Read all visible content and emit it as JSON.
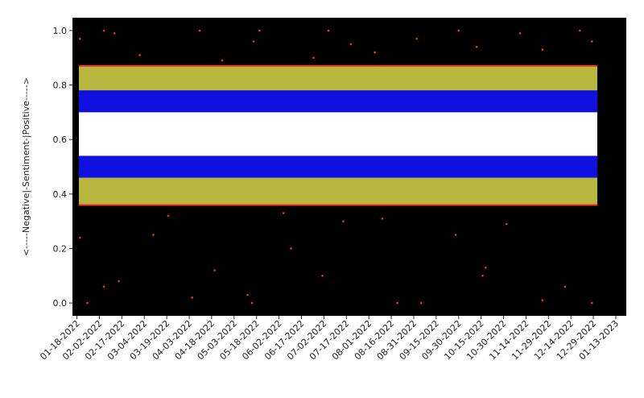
{
  "chart_data": {
    "type": "scatter",
    "ylabel": "<-----Negative|-Sentiment-|Positive----->",
    "xlim": [
      "01-15-2022",
      "01-20-2023"
    ],
    "xticks": [
      "01-18-2022",
      "02-02-2022",
      "02-17-2022",
      "03-04-2022",
      "03-19-2022",
      "04-03-2022",
      "04-18-2022",
      "05-03-2022",
      "05-18-2022",
      "06-02-2022",
      "06-17-2022",
      "07-02-2022",
      "07-17-2022",
      "08-01-2022",
      "08-16-2022",
      "08-31-2022",
      "09-15-2022",
      "09-30-2022",
      "10-15-2022",
      "10-30-2022",
      "11-14-2022",
      "11-29-2022",
      "12-14-2022",
      "12-29-2022",
      "01-13-2023"
    ],
    "ylim": [
      -0.047,
      1.047
    ],
    "yticks": [
      {
        "value": 0,
        "label": "0.0"
      },
      0.2,
      0.4,
      0.6,
      0.8,
      {
        "value": 1,
        "label": "1.0"
      }
    ],
    "background": "#000000",
    "bands": [
      {
        "color": "#b8b840",
        "range": [
          0.78,
          0.87
        ]
      },
      {
        "color": "#1010e0",
        "range": [
          0.7,
          0.78
        ]
      },
      {
        "color": "#ffffff",
        "range": [
          0.54,
          0.7
        ]
      },
      {
        "color": "#1010e0",
        "range": [
          0.46,
          0.54
        ]
      },
      {
        "color": "#b8b840",
        "range": [
          0.36,
          0.46
        ]
      }
    ],
    "hlines": {
      "color": "#ff3020",
      "values": [
        0.87,
        0.36
      ]
    },
    "series": [
      {
        "color": "#ff3020",
        "x": [
          "01-20-2022",
          "02-05-2022",
          "02-12-2022",
          "03-01-2022",
          "04-10-2022",
          "04-25-2022",
          "05-16-2022",
          "05-20-2022",
          "06-25-2022",
          "07-05-2022",
          "07-20-2022",
          "08-05-2022",
          "09-02-2022",
          "09-30-2022",
          "10-12-2022",
          "11-10-2022",
          "11-25-2022",
          "12-20-2022",
          "12-28-2022",
          "01-20-2022",
          "01-25-2022",
          "02-05-2022",
          "02-15-2022",
          "03-10-2022",
          "04-05-2022",
          "04-20-2022",
          "05-12-2022",
          "05-15-2022",
          "06-10-2022",
          "07-01-2022",
          "07-15-2022",
          "08-20-2022",
          "09-05-2022",
          "09-28-2022",
          "10-16-2022",
          "10-18-2022",
          "11-25-2022",
          "12-10-2022",
          "12-28-2022",
          "03-20-2022",
          "06-05-2022",
          "08-10-2022",
          "11-01-2022"
        ],
        "values": [
          0.97,
          1.0,
          0.99,
          0.91,
          1.0,
          0.89,
          0.96,
          1.0,
          0.9,
          1.0,
          0.95,
          0.92,
          0.97,
          1.0,
          0.94,
          0.99,
          0.93,
          1.0,
          0.96,
          0.24,
          0.0,
          0.06,
          0.08,
          0.25,
          0.02,
          0.12,
          0.03,
          0.0,
          0.2,
          0.1,
          0.3,
          0.0,
          0.0,
          0.25,
          0.1,
          0.13,
          0.01,
          0.06,
          0.0,
          0.32,
          0.33,
          0.31,
          0.29
        ]
      }
    ]
  }
}
